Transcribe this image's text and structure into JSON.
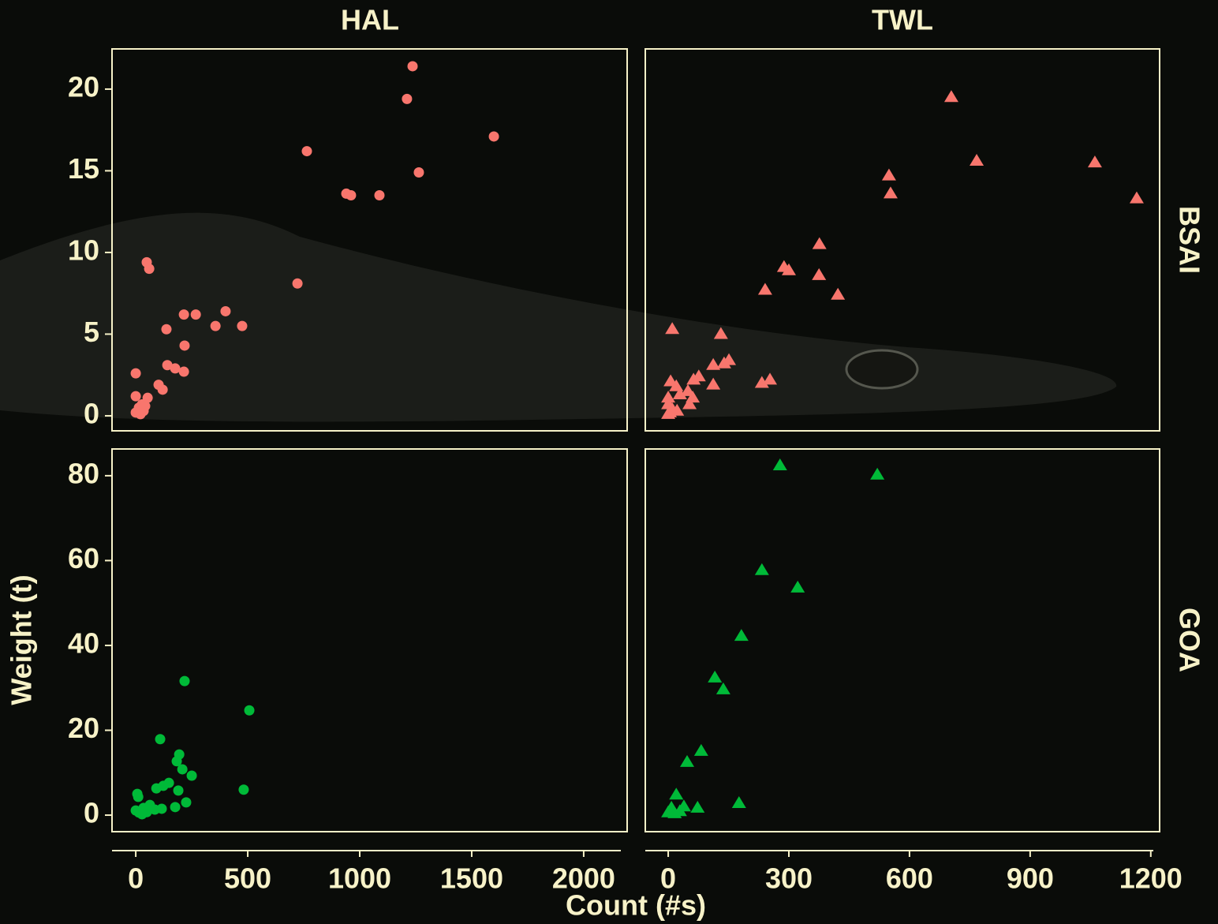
{
  "facets": {
    "columns": [
      "HAL",
      "TWL"
    ],
    "rows": [
      "BSAI",
      "GOA"
    ],
    "xlabel": "Count (#s)",
    "ylabel": "Weight (t)"
  },
  "chart_data": [
    {
      "type": "scatter",
      "color": "#f8766d",
      "marker": "circle",
      "xlim": [
        -106,
        2194
      ],
      "ylim": [
        -0.92,
        22.46
      ],
      "yticks": [
        0,
        5,
        10,
        15,
        20
      ],
      "x": [
        1236,
        1211,
        1599,
        764,
        1264,
        940,
        961,
        1088,
        49,
        60,
        722,
        401,
        215,
        268,
        356,
        475,
        137,
        218,
        0,
        141,
        176,
        215,
        102,
        120,
        0,
        53,
        28,
        14,
        0,
        35,
        21,
        42
      ],
      "values": [
        21.4,
        19.4,
        17.1,
        16.2,
        14.9,
        13.6,
        13.5,
        13.5,
        9.4,
        9.0,
        8.1,
        6.4,
        6.2,
        6.2,
        5.5,
        5.5,
        5.3,
        4.3,
        2.6,
        3.1,
        2.9,
        2.7,
        1.9,
        1.6,
        1.2,
        1.1,
        0.7,
        0.5,
        0.2,
        0.3,
        0.1,
        0.6
      ]
    },
    {
      "type": "scatter",
      "color": "#f8766d",
      "marker": "triangle",
      "xlim": [
        -57,
        1222
      ],
      "ylim": [
        -0.92,
        22.46
      ],
      "x": [
        704,
        767,
        1061,
        549,
        553,
        1165,
        376,
        288,
        300,
        375,
        422,
        241,
        10,
        131,
        151,
        139,
        112,
        76,
        63,
        253,
        233,
        112,
        6,
        20,
        49,
        29,
        61,
        53,
        0,
        0,
        10,
        4,
        22,
        0
      ],
      "values": [
        19.5,
        15.6,
        15.5,
        14.7,
        13.6,
        13.3,
        10.5,
        9.1,
        8.9,
        8.6,
        7.4,
        7.7,
        5.3,
        5.0,
        3.4,
        3.2,
        3.1,
        2.4,
        2.2,
        2.2,
        2.0,
        1.9,
        2.1,
        1.8,
        1.5,
        1.3,
        1.1,
        0.7,
        1.1,
        0.7,
        0.4,
        0.2,
        0.3,
        0.1
      ]
    },
    {
      "type": "scatter",
      "color": "#00ba38",
      "marker": "circle",
      "xlim": [
        -106,
        2194
      ],
      "ylim": [
        -3.9,
        86.3
      ],
      "yticks": [
        0,
        20,
        40,
        60,
        80
      ],
      "xticks": [
        0,
        500,
        1000,
        1500,
        2000
      ],
      "x": [
        218,
        507,
        109,
        194,
        183,
        208,
        250,
        148,
        123,
        92,
        190,
        482,
        7,
        11,
        225,
        63,
        35,
        116,
        176,
        85,
        0,
        14,
        49,
        28
      ],
      "values": [
        31.6,
        24.7,
        17.9,
        14.3,
        12.7,
        10.8,
        9.3,
        7.6,
        6.9,
        6.3,
        5.8,
        6.0,
        5.0,
        4.3,
        3.0,
        2.4,
        1.7,
        1.5,
        1.9,
        1.3,
        1.1,
        0.6,
        0.7,
        0.2
      ]
    },
    {
      "type": "scatter",
      "color": "#00ba38",
      "marker": "triangle",
      "xlim": [
        -57,
        1222
      ],
      "ylim": [
        -3.9,
        86.3
      ],
      "xticks": [
        0,
        300,
        600,
        900,
        1200
      ],
      "x": [
        278,
        520,
        233,
        322,
        182,
        116,
        137,
        82,
        47,
        20,
        176,
        73,
        39,
        8,
        29,
        0,
        16
      ],
      "values": [
        82.4,
        80.2,
        57.7,
        53.6,
        42.2,
        32.4,
        29.6,
        15.1,
        12.5,
        4.8,
        2.8,
        1.7,
        2.0,
        1.7,
        0.9,
        0.6,
        0.4
      ]
    }
  ]
}
